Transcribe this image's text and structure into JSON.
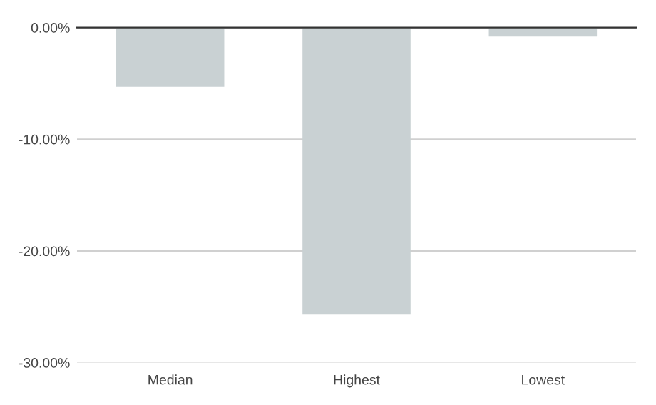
{
  "chart_data": {
    "type": "bar",
    "categories": [
      "Median",
      "Highest",
      "Lowest"
    ],
    "values": [
      -5.3,
      -25.7,
      -0.8
    ],
    "color": "#c9d1d3",
    "ylim": [
      -30,
      0
    ],
    "yticks": [
      {
        "value": 0,
        "label": "0.00%"
      },
      {
        "value": -10,
        "label": "-10.00%"
      },
      {
        "value": -20,
        "label": "-20.00%"
      },
      {
        "value": -30,
        "label": "-30.00%"
      }
    ],
    "grid": "y"
  }
}
